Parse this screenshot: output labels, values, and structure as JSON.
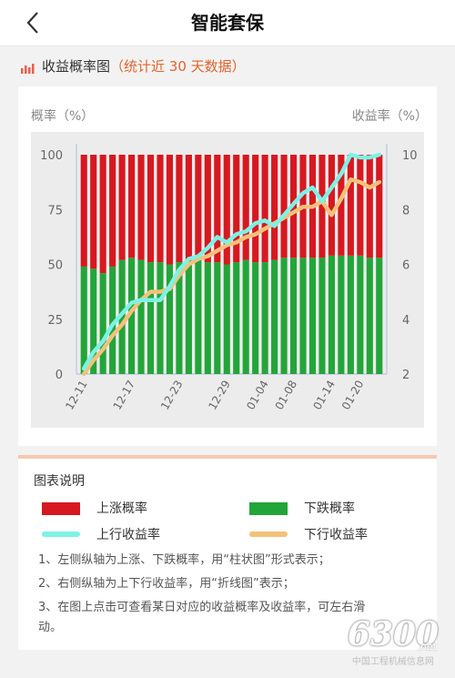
{
  "nav": {
    "title": "智能套保",
    "back_icon": "chevron-left-icon"
  },
  "section": {
    "icon": "bar-chart-icon",
    "title": "收益概率图",
    "note": "（统计近 30 天数据）"
  },
  "chart_data": {
    "type": "bar+line",
    "ylabel_left": "概率（%）",
    "ylabel_right": "收益率（%）",
    "ylim_left": [
      0,
      100
    ],
    "ylim_right": [
      2,
      10
    ],
    "yticks_left": [
      "0",
      "25",
      "50",
      "75",
      "100"
    ],
    "yticks_right": [
      "2",
      "4",
      "6",
      "8",
      "10"
    ],
    "xtick_labels": [
      "12-11",
      "12-17",
      "12-23",
      "12-29",
      "01-04",
      "01-08",
      "01-14",
      "01-20"
    ],
    "xtick_index": [
      0,
      5,
      10,
      15,
      19,
      22,
      26,
      29
    ],
    "n_points": 32,
    "bar_series": [
      {
        "name": "下跌概率",
        "color": "#23a53a",
        "values": [
          49,
          48,
          46,
          49,
          52,
          53,
          52,
          51,
          51,
          50,
          51,
          51,
          52,
          51,
          51,
          50,
          51,
          52,
          51,
          51,
          52,
          53,
          53,
          53,
          53,
          53,
          54,
          54,
          54,
          54,
          53,
          53
        ]
      },
      {
        "name": "上涨概率",
        "color": "#d71820",
        "values": [
          51,
          52,
          54,
          51,
          48,
          47,
          48,
          49,
          49,
          50,
          49,
          49,
          48,
          49,
          49,
          50,
          49,
          48,
          49,
          49,
          48,
          47,
          47,
          47,
          47,
          47,
          46,
          46,
          46,
          46,
          47,
          47
        ]
      }
    ],
    "line_series": [
      {
        "name": "上行收益率",
        "color": "#7df2e6",
        "values": [
          2.2,
          2.8,
          3.2,
          3.8,
          4.2,
          4.6,
          4.7,
          4.7,
          4.7,
          5.2,
          5.8,
          6.2,
          6.3,
          6.6,
          7.0,
          6.8,
          7.1,
          7.2,
          7.5,
          7.6,
          7.4,
          7.8,
          8.2,
          8.6,
          8.8,
          8.3,
          8.8,
          9.3,
          10.0,
          9.9,
          9.9,
          10.0
        ]
      },
      {
        "name": "下行收益率",
        "color": "#f3c279",
        "values": [
          2.0,
          2.5,
          2.9,
          3.4,
          3.8,
          4.3,
          4.7,
          5.0,
          5.0,
          5.1,
          5.6,
          6.0,
          6.2,
          6.3,
          6.5,
          6.7,
          6.8,
          7.0,
          7.1,
          7.3,
          7.5,
          7.7,
          7.9,
          8.1,
          8.1,
          8.3,
          7.8,
          8.4,
          9.1,
          9.0,
          8.8,
          9.0
        ]
      }
    ]
  },
  "legend": {
    "title": "图表说明",
    "items": [
      {
        "label": "上涨概率",
        "color": "#d71820"
      },
      {
        "label": "下跌概率",
        "color": "#23a53a"
      },
      {
        "label": "上行收益率",
        "color": "#7df2e6"
      },
      {
        "label": "下行收益率",
        "color": "#f3c279"
      }
    ],
    "desc1": "1、左侧纵轴为上涨、下跌概率，用“柱状图”形式表示；",
    "desc2": "2、右侧纵轴为上下行收益率，用“折线图”表示；",
    "desc3a": "3、在图上点击可查看某日对应的收益概率及收益率，可左右滑",
    "desc3b": "动。"
  },
  "watermark": {
    "number": "6300",
    "suffix": ".net",
    "text": "中国工程机械信息网"
  }
}
